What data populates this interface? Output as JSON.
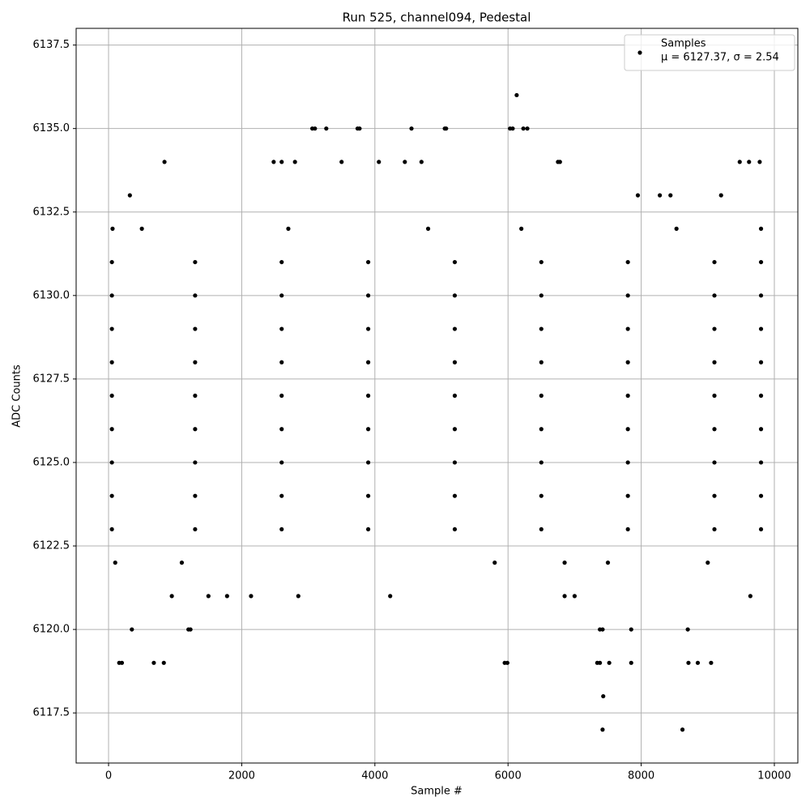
{
  "chart_data": {
    "type": "scatter",
    "title": "Run 525, channel094, Pedestal",
    "x_label": "Sample #",
    "y_label": "ADC Counts",
    "legend_note": "μ = 6127.37, σ = 2.54",
    "legend": "upper right",
    "grid": true,
    "xlim": [
      -487,
      10353
    ],
    "ylim": [
      6116.0,
      6138.0
    ],
    "xticks": [
      0,
      2000,
      4000,
      6000,
      8000,
      10000
    ],
    "yticks": [
      {
        "value": 6117.5,
        "label": "6117.5"
      },
      {
        "value": 6120,
        "label": "6120.0"
      },
      {
        "value": 6122.5,
        "label": "6122.5"
      },
      {
        "value": 6125,
        "label": "6125.0"
      },
      {
        "value": 6127.5,
        "label": "6127.5"
      },
      {
        "value": 6130,
        "label": "6130.0"
      },
      {
        "value": 6132.5,
        "label": "6132.5"
      },
      {
        "value": 6135,
        "label": "6135.0"
      },
      {
        "value": 6137.5,
        "label": "6137.5"
      }
    ],
    "x": [
      840,
      320,
      60,
      350,
      160,
      200,
      680,
      830,
      1200,
      1230,
      3060,
      3100,
      3270,
      3740,
      3770,
      4550,
      5050,
      5070,
      6130,
      6030,
      6070,
      6230,
      6290,
      5950,
      5990,
      7380,
      7420,
      7340,
      7380,
      7430,
      7420,
      7520,
      7850,
      7850,
      8620,
      8700,
      8710,
      8850,
      9050,
      9480,
      9620,
      9780,
      2480,
      2600,
      2800,
      3500,
      4060,
      4450,
      4700,
      6750,
      6780,
      4230,
      2850,
      2140,
      1780,
      1500,
      950,
      7950,
      8280,
      8440,
      9200,
      8530,
      9640,
      7000,
      6850,
      6850,
      50,
      1300,
      2600,
      3900,
      5200,
      6500,
      7800,
      9100,
      9800,
      50,
      1300,
      2600,
      3900,
      5200,
      6500,
      7800,
      9100,
      9800,
      50,
      1300,
      2600,
      3900,
      5200,
      6500,
      7800,
      9100,
      9800,
      50,
      1300,
      2600,
      3900,
      5200,
      6500,
      7800,
      9100,
      9800,
      50,
      1300,
      2600,
      3900,
      5200,
      6500,
      7800,
      9100,
      9800,
      50,
      1300,
      2600,
      3900,
      5200,
      6500,
      7800,
      9100,
      9800,
      50,
      1300,
      2600,
      3900,
      5200,
      6500,
      7800,
      9100,
      9800,
      50,
      1300,
      2600,
      3900,
      5200,
      6500,
      7800,
      9100,
      9800,
      50,
      1300,
      2600,
      3900,
      5200,
      6500,
      7800,
      9100,
      9800,
      100,
      1100,
      5800,
      7500,
      9000,
      500,
      2700,
      4800,
      6200,
      9800
    ],
    "series": [
      {
        "name": "Samples",
        "color": "#000000",
        "values": [
          6134,
          6133,
          6132,
          6120,
          6119,
          6119,
          6119,
          6119,
          6120,
          6120,
          6135,
          6135,
          6135,
          6135,
          6135,
          6135,
          6135,
          6135,
          6136,
          6135,
          6135,
          6135,
          6135,
          6119,
          6119,
          6120,
          6120,
          6119,
          6119,
          6118,
          6117,
          6119,
          6120,
          6119,
          6117,
          6120,
          6119,
          6119,
          6119,
          6134,
          6134,
          6134,
          6134,
          6134,
          6134,
          6134,
          6134,
          6134,
          6134,
          6134,
          6134,
          6121,
          6121,
          6121,
          6121,
          6121,
          6121,
          6133,
          6133,
          6133,
          6133,
          6132,
          6121,
          6121,
          6122,
          6121,
          6123,
          6123,
          6123,
          6123,
          6123,
          6123,
          6123,
          6123,
          6123,
          6124,
          6124,
          6124,
          6124,
          6124,
          6124,
          6124,
          6124,
          6124,
          6125,
          6125,
          6125,
          6125,
          6125,
          6125,
          6125,
          6125,
          6125,
          6126,
          6126,
          6126,
          6126,
          6126,
          6126,
          6126,
          6126,
          6126,
          6127,
          6127,
          6127,
          6127,
          6127,
          6127,
          6127,
          6127,
          6127,
          6128,
          6128,
          6128,
          6128,
          6128,
          6128,
          6128,
          6128,
          6128,
          6129,
          6129,
          6129,
          6129,
          6129,
          6129,
          6129,
          6129,
          6129,
          6130,
          6130,
          6130,
          6130,
          6130,
          6130,
          6130,
          6130,
          6130,
          6131,
          6131,
          6131,
          6131,
          6131,
          6131,
          6131,
          6131,
          6131,
          6122,
          6122,
          6122,
          6122,
          6122,
          6132,
          6132,
          6132,
          6132,
          6132
        ]
      }
    ]
  }
}
